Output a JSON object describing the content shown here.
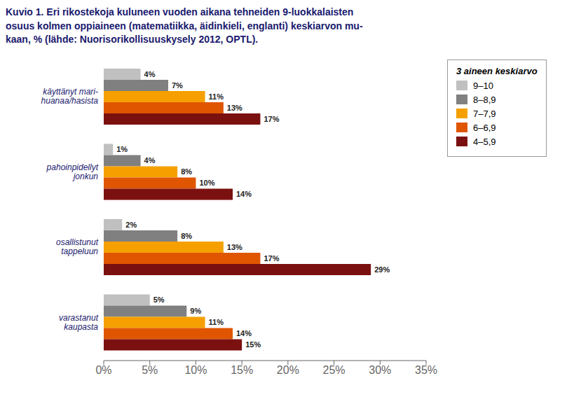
{
  "chart_data": {
    "type": "bar",
    "orientation": "horizontal",
    "title": "Kuvio 1. Eri rikostekoja kuluneen vuoden aikana tehneiden 9-luokkalaisten\nosuus kolmen oppiaineen (matematiikka, äidinkieli, englanti) keskiarvon mu-\nkaan, % (lähde: Nuorisorikollisuuskysely 2012, OPTL).",
    "categories": [
      "käyttänyt mari-\nhuanaa/hasista",
      "pahoinpidellyt\njonkun",
      "osallistunut\ntappeluun",
      "varastanut\nkaupasta"
    ],
    "legend_title": "3 aineen keskiarvo",
    "series": [
      {
        "name": "9–10",
        "color": "#c0c0c0",
        "values": [
          4,
          1,
          2,
          5
        ],
        "value_labels": [
          "4%",
          "1%",
          "2%",
          "5%"
        ]
      },
      {
        "name": "8–8,9",
        "color": "#808080",
        "values": [
          7,
          4,
          8,
          9
        ],
        "value_labels": [
          "7%",
          "4%",
          "8%",
          "9%"
        ]
      },
      {
        "name": "7–7,9",
        "color": "#f5a000",
        "values": [
          11,
          8,
          13,
          11
        ],
        "value_labels": [
          "11%",
          "8%",
          "13%",
          "11%"
        ]
      },
      {
        "name": "6–6,9",
        "color": "#e05500",
        "values": [
          13,
          10,
          17,
          14
        ],
        "value_labels": [
          "13%",
          "10%",
          "17%",
          "14%"
        ]
      },
      {
        "name": "4–5,9",
        "color": "#7b1010",
        "values": [
          17,
          14,
          29,
          15
        ],
        "value_labels": [
          "17%",
          "14%",
          "29%",
          "15%"
        ]
      }
    ],
    "xlim": [
      0,
      35
    ],
    "xticks": [
      {
        "value": 0,
        "label": "0%"
      },
      {
        "value": 5,
        "label": "5%"
      },
      {
        "value": 10,
        "label": "10%"
      },
      {
        "value": 15,
        "label": "15%"
      },
      {
        "value": 20,
        "label": "20%"
      },
      {
        "value": 25,
        "label": "25%"
      },
      {
        "value": 30,
        "label": "30%"
      },
      {
        "value": 35,
        "label": "35%"
      }
    ],
    "grid": false,
    "legend": "upper right",
    "data_labels": true
  }
}
